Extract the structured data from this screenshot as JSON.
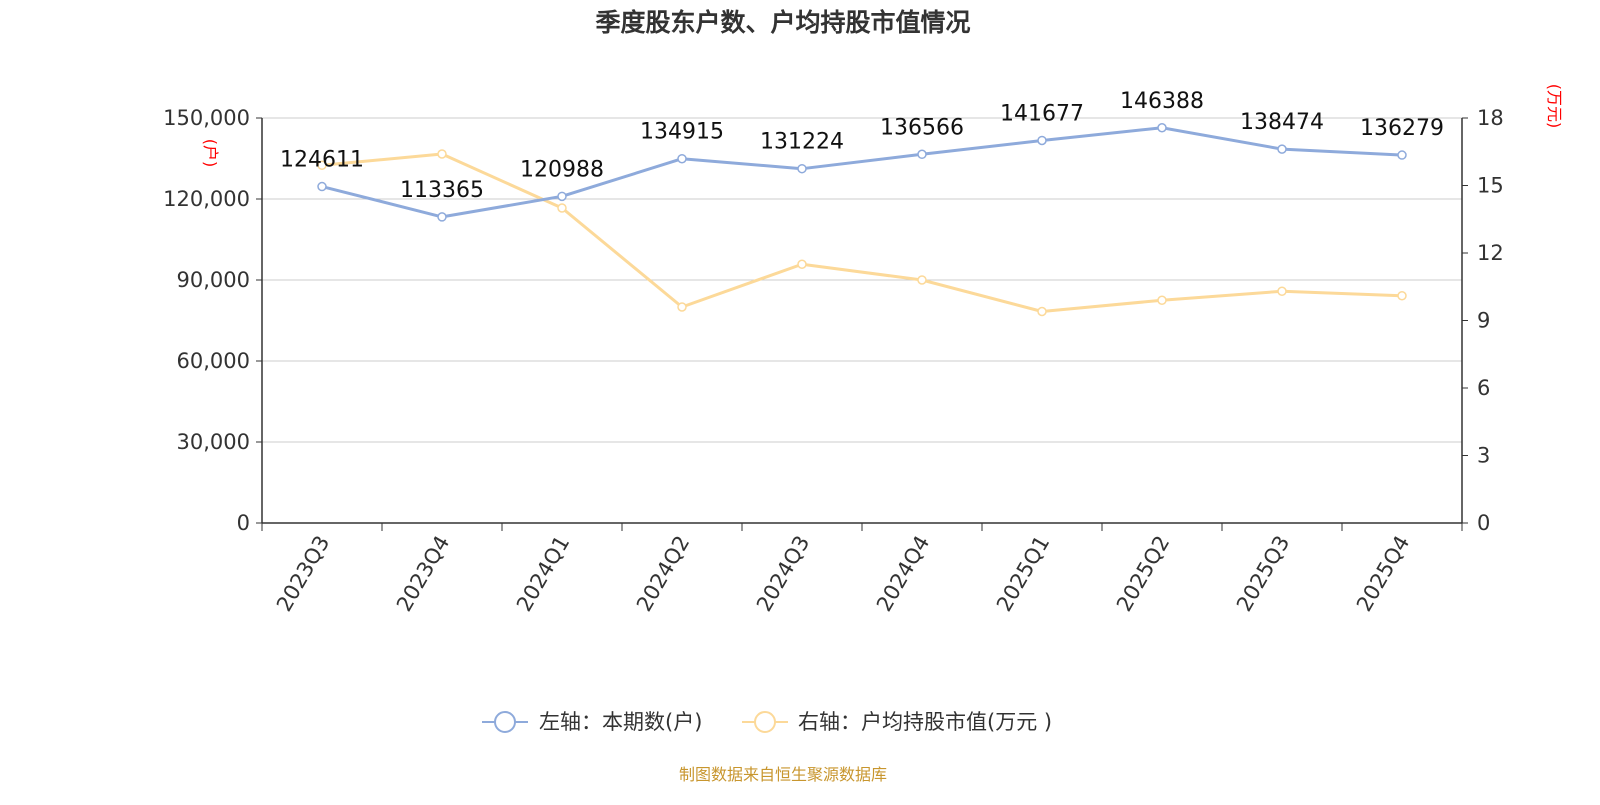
{
  "chart_data": {
    "type": "line",
    "title": "季度股东户数、户均持股市值情况",
    "categories": [
      "2023Q3",
      "2023Q4",
      "2024Q1",
      "2024Q2",
      "2024Q3",
      "2024Q4",
      "2025Q1",
      "2025Q2",
      "2025Q3",
      "2025Q4"
    ],
    "left_axis": {
      "unit_label": "(户)",
      "ylim": [
        0,
        150000
      ],
      "ticks": [
        "0",
        "30,000",
        "60,000",
        "90,000",
        "120,000",
        "150,000"
      ]
    },
    "right_axis": {
      "unit_label": "(万元)",
      "ylim": [
        0,
        18
      ],
      "ticks": [
        "0",
        "3",
        "6",
        "9",
        "12",
        "15",
        "18"
      ]
    },
    "series": [
      {
        "name": "左轴：本期数(户)",
        "axis": "left",
        "color": "#8eaadb",
        "values": [
          124611,
          113365,
          120988,
          134915,
          131224,
          136566,
          141677,
          146388,
          138474,
          136279
        ],
        "labels": [
          "124611",
          "113365",
          "120988",
          "134915",
          "131224",
          "136566",
          "141677",
          "146388",
          "138474",
          "136279"
        ]
      },
      {
        "name": "右轴：户均持股市值(万元 )",
        "axis": "right",
        "color": "#fcd999",
        "values": [
          15.9,
          16.4,
          14.0,
          9.6,
          11.5,
          10.8,
          9.4,
          9.9,
          10.3,
          10.1
        ]
      }
    ],
    "grid": true,
    "legend_position": "bottom-center"
  },
  "source": "制图数据来自恒生聚源数据库"
}
